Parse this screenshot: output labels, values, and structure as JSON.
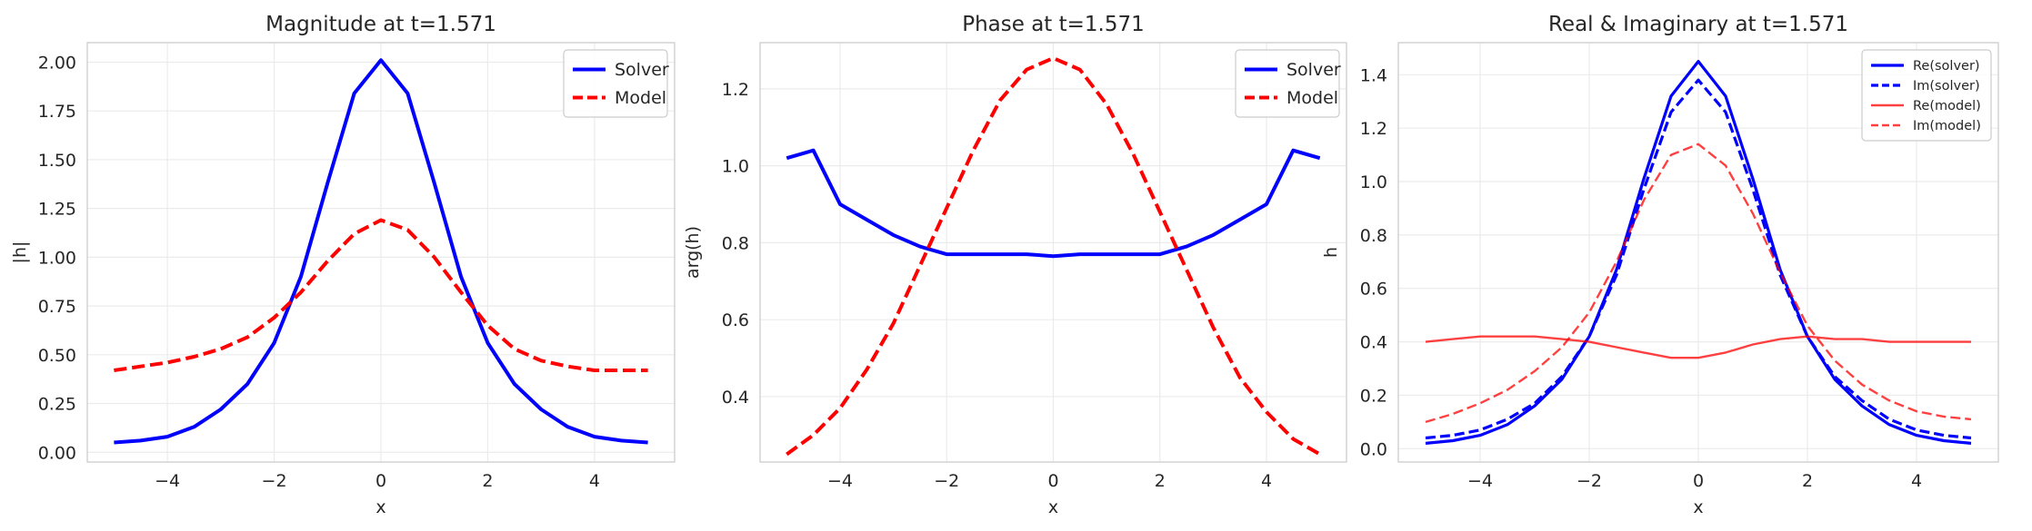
{
  "chart_data": [
    {
      "type": "line",
      "title": "Magnitude at t=1.571",
      "xlabel": "x",
      "ylabel": "|h|",
      "xlim": [
        -5.5,
        5.5
      ],
      "ylim": [
        -0.05,
        2.1
      ],
      "xticks": [
        -4,
        -2,
        0,
        2,
        4
      ],
      "xtick_labels": [
        "−4",
        "−2",
        "0",
        "2",
        "4"
      ],
      "yticks": [
        0,
        0.25,
        0.5,
        0.75,
        1.0,
        1.25,
        1.5,
        1.75,
        2.0
      ],
      "ytick_labels": [
        "0.00",
        "0.25",
        "0.50",
        "0.75",
        "1.00",
        "1.25",
        "1.50",
        "1.75",
        "2.00"
      ],
      "grid": true,
      "legend": "top-right",
      "x": [
        -5,
        -4.5,
        -4,
        -3.5,
        -3,
        -2.5,
        -2,
        -1.5,
        -1,
        -0.5,
        0,
        0.5,
        1,
        1.5,
        2,
        2.5,
        3,
        3.5,
        4,
        4.5,
        5
      ],
      "series": [
        {
          "name": "Solver",
          "color": "#0000ff",
          "style": "solid",
          "width": 4,
          "values": [
            0.05,
            0.06,
            0.08,
            0.13,
            0.22,
            0.35,
            0.56,
            0.9,
            1.38,
            1.84,
            2.01,
            1.84,
            1.38,
            0.9,
            0.56,
            0.35,
            0.22,
            0.13,
            0.08,
            0.06,
            0.05
          ]
        },
        {
          "name": "Model",
          "color": "#ff0000",
          "style": "dashed",
          "width": 4,
          "values": [
            0.42,
            0.44,
            0.46,
            0.49,
            0.53,
            0.59,
            0.69,
            0.82,
            0.98,
            1.12,
            1.19,
            1.14,
            1.0,
            0.82,
            0.65,
            0.53,
            0.47,
            0.44,
            0.42,
            0.42,
            0.42
          ]
        }
      ]
    },
    {
      "type": "line",
      "title": "Phase at t=1.571",
      "xlabel": "x",
      "ylabel": "arg(h)",
      "xlim": [
        -5.5,
        5.5
      ],
      "ylim": [
        0.23,
        1.32
      ],
      "xticks": [
        -4,
        -2,
        0,
        2,
        4
      ],
      "xtick_labels": [
        "−4",
        "−2",
        "0",
        "2",
        "4"
      ],
      "yticks": [
        0.4,
        0.6,
        0.8,
        1.0,
        1.2
      ],
      "ytick_labels": [
        "0.4",
        "0.6",
        "0.8",
        "1.0",
        "1.2"
      ],
      "grid": true,
      "legend": "top-right",
      "x": [
        -5,
        -4.5,
        -4,
        -3.5,
        -3,
        -2.5,
        -2,
        -1.5,
        -1,
        -0.5,
        0,
        0.5,
        1,
        1.5,
        2,
        2.5,
        3,
        3.5,
        4,
        4.5,
        5
      ],
      "series": [
        {
          "name": "Solver",
          "color": "#0000ff",
          "style": "solid",
          "width": 4,
          "values": [
            1.02,
            1.04,
            0.9,
            0.86,
            0.82,
            0.79,
            0.77,
            0.77,
            0.77,
            0.77,
            0.765,
            0.77,
            0.77,
            0.77,
            0.77,
            0.79,
            0.82,
            0.86,
            0.9,
            1.04,
            1.02
          ]
        },
        {
          "name": "Model",
          "color": "#ff0000",
          "style": "dashed",
          "width": 4,
          "values": [
            0.25,
            0.3,
            0.37,
            0.47,
            0.59,
            0.74,
            0.89,
            1.04,
            1.17,
            1.25,
            1.28,
            1.25,
            1.16,
            1.03,
            0.88,
            0.73,
            0.58,
            0.45,
            0.36,
            0.29,
            0.25
          ]
        }
      ]
    },
    {
      "type": "line",
      "title": "Real & Imaginary at t=1.571",
      "xlabel": "x",
      "ylabel": "h",
      "xlim": [
        -5.5,
        5.5
      ],
      "ylim": [
        -0.05,
        1.52
      ],
      "xticks": [
        -4,
        -2,
        0,
        2,
        4
      ],
      "xtick_labels": [
        "−4",
        "−2",
        "0",
        "2",
        "4"
      ],
      "yticks": [
        0,
        0.2,
        0.4,
        0.6,
        0.8,
        1.0,
        1.2,
        1.4
      ],
      "ytick_labels": [
        "0.0",
        "0.2",
        "0.4",
        "0.6",
        "0.8",
        "1.0",
        "1.2",
        "1.4"
      ],
      "grid": true,
      "legend": "top-right",
      "x": [
        -5,
        -4.5,
        -4,
        -3.5,
        -3,
        -2.5,
        -2,
        -1.5,
        -1,
        -0.5,
        0,
        0.5,
        1,
        1.5,
        2,
        2.5,
        3,
        3.5,
        4,
        4.5,
        5
      ],
      "series": [
        {
          "name": "Re(solver)",
          "color": "#0000ff",
          "style": "solid",
          "width": 3.2,
          "opacity": 1,
          "values": [
            0.02,
            0.03,
            0.05,
            0.09,
            0.16,
            0.26,
            0.42,
            0.67,
            1.01,
            1.32,
            1.45,
            1.32,
            1.01,
            0.67,
            0.42,
            0.26,
            0.16,
            0.09,
            0.05,
            0.03,
            0.02
          ]
        },
        {
          "name": "Im(solver)",
          "color": "#0000ff",
          "style": "dashed",
          "width": 3.2,
          "opacity": 1,
          "values": [
            0.04,
            0.05,
            0.07,
            0.11,
            0.17,
            0.27,
            0.42,
            0.65,
            0.97,
            1.26,
            1.38,
            1.26,
            0.97,
            0.65,
            0.42,
            0.27,
            0.18,
            0.11,
            0.07,
            0.05,
            0.04
          ]
        },
        {
          "name": "Re(model)",
          "color": "#ff0000",
          "style": "solid",
          "width": 2.4,
          "opacity": 0.75,
          "values": [
            0.4,
            0.41,
            0.42,
            0.42,
            0.42,
            0.41,
            0.4,
            0.38,
            0.36,
            0.34,
            0.34,
            0.36,
            0.39,
            0.41,
            0.42,
            0.41,
            0.41,
            0.4,
            0.4,
            0.4,
            0.4
          ]
        },
        {
          "name": "Im(model)",
          "color": "#ff0000",
          "style": "dashed",
          "width": 2.4,
          "opacity": 0.75,
          "values": [
            0.1,
            0.13,
            0.17,
            0.22,
            0.29,
            0.38,
            0.51,
            0.7,
            0.93,
            1.1,
            1.14,
            1.06,
            0.88,
            0.66,
            0.46,
            0.33,
            0.24,
            0.18,
            0.14,
            0.12,
            0.11
          ]
        }
      ]
    }
  ]
}
